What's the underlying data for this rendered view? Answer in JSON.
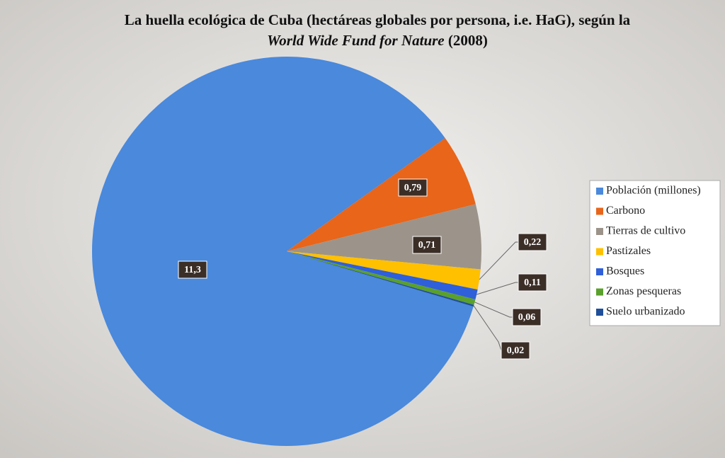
{
  "chart_data": {
    "type": "pie",
    "title": [
      "La huella ecológica de Cuba (hectáreas globales por persona, i.e. HaG), según la",
      "World Wide Fund for Nature",
      "(2008)"
    ],
    "categories": [
      "Población (millones)",
      "Carbono",
      "Tierras de cultivo",
      "Pastizales",
      "Bosques",
      "Zonas pesqueras",
      "Suelo urbanizado"
    ],
    "values": [
      11.3,
      0.79,
      0.71,
      0.22,
      0.11,
      0.06,
      0.02
    ],
    "value_labels": [
      "11,3",
      "0,79",
      "0,71",
      "0,22",
      "0,11",
      "0,06",
      "0,02"
    ],
    "colors": [
      "#4a89dc",
      "#e8651a",
      "#9c948a",
      "#ffc000",
      "#2f5fd9",
      "#5aa02c",
      "#1f4f9a"
    ],
    "legend": "right"
  }
}
